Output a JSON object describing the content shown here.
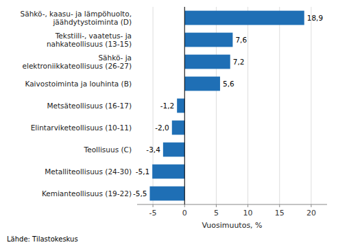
{
  "chart_data": {
    "type": "bar",
    "orientation": "horizontal",
    "categories": [
      "Kemianteollisuus (19-22)",
      "Metalliteollisuus (24-30)",
      "Teollisuus (C)",
      "Elintarviketeollisuus (10-11)",
      "Metsäteollisuus (16-17)",
      "Kaivostoiminta ja louhinta (B)",
      "Sähkö- ja\nelektroniikkateollisuus (26-27)",
      "Tekstiili-, vaatetus- ja\nnahkateollisuus (13-15)",
      "Sähkö-, kaasu- ja lämpöhuolto,\njäähdytystoiminta (D)"
    ],
    "values": [
      -5.5,
      -5.1,
      -3.4,
      -2.0,
      -1.2,
      5.6,
      7.2,
      7.6,
      18.9
    ],
    "value_labels": [
      "-5,5",
      "-5,1",
      "-3,4",
      "-2,0",
      "-1,2",
      "5,6",
      "7,2",
      "7,6",
      "18,9"
    ],
    "data_labels": true,
    "color": "#1f6fb5",
    "xlabel": "Vuosimuutos, %",
    "xlim": [
      -7.5,
      22.5
    ],
    "xticks": [
      -5,
      0,
      5,
      10,
      15,
      20
    ],
    "grid": true,
    "annotations": [
      "Lähde: Tilastokeskus"
    ]
  }
}
